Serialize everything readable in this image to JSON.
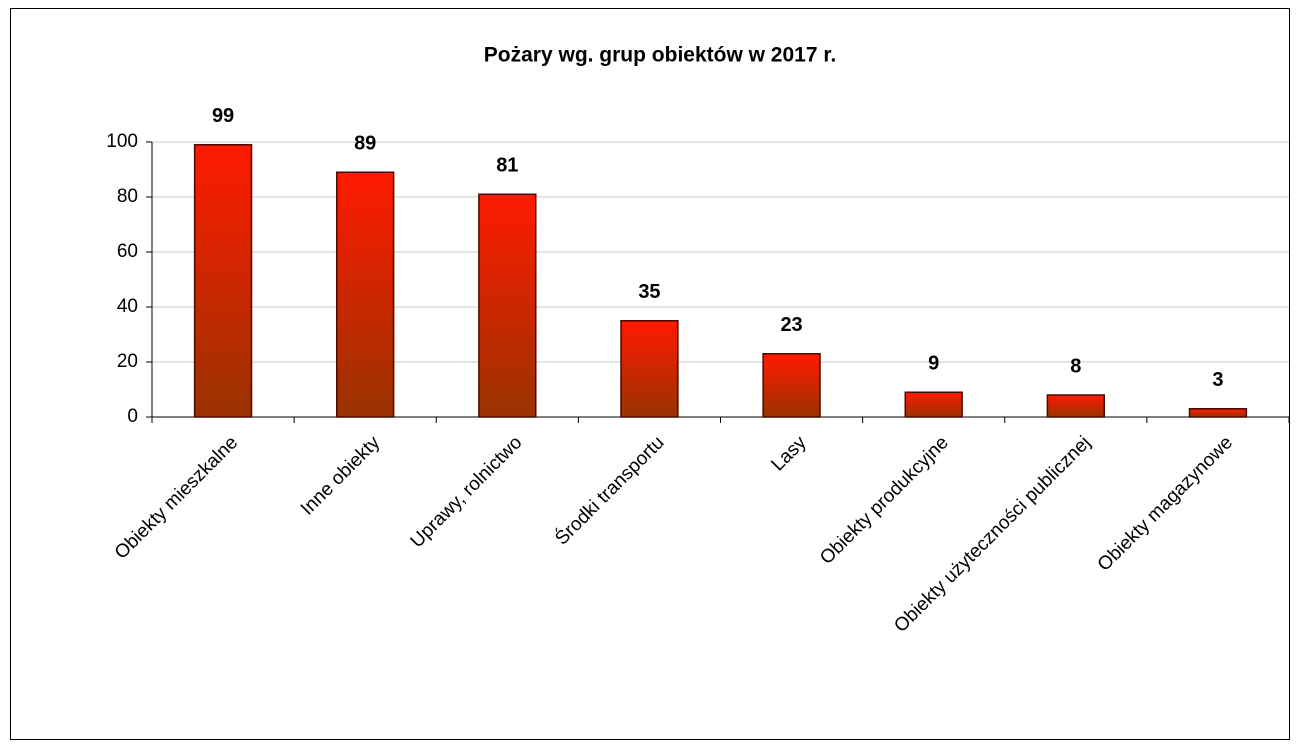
{
  "chart_data": {
    "type": "bar",
    "title": "Pożary wg. grup obiektów w 2017 r.",
    "categories": [
      "Obiekty mieszkalne",
      "Inne obiekty",
      "Uprawy, rolnictwo",
      "Środki transportu",
      "Lasy",
      "Obiekty produkcyjne",
      "Obiekty użyteczności publicznej",
      "Obiekty magazynowe"
    ],
    "values": [
      99,
      89,
      81,
      35,
      23,
      9,
      8,
      3
    ],
    "color": "#ff1a00",
    "color_bottom": "#993300",
    "ylim": [
      0,
      100
    ],
    "yticks": [
      0,
      20,
      40,
      60,
      80,
      100
    ],
    "grid": true
  }
}
